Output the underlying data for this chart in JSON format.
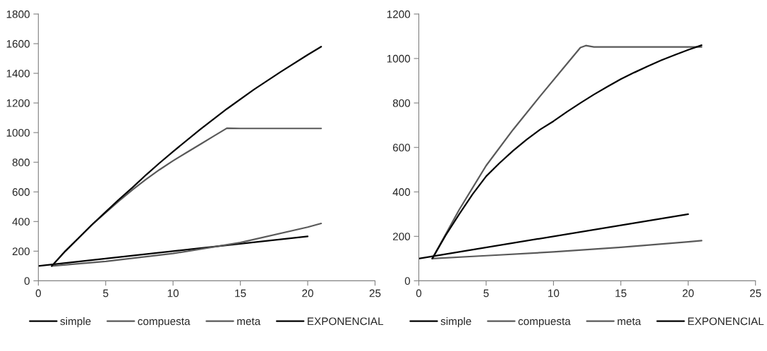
{
  "chart_data": [
    {
      "type": "line",
      "xlim": [
        0,
        25
      ],
      "xticks": [
        0,
        5,
        10,
        15,
        20,
        25
      ],
      "ylim": [
        0,
        1800
      ],
      "yticks": [
        0,
        200,
        400,
        600,
        800,
        1000,
        1200,
        1400,
        1600,
        1800
      ],
      "grid": false,
      "legend": "bottom",
      "marker": "none",
      "line_style": "solid",
      "series": [
        {
          "name": "simple",
          "color": "#000000",
          "x": [
            0,
            20
          ],
          "values": [
            100,
            300
          ]
        },
        {
          "name": "compuesta",
          "color": "#595959",
          "x": [
            1,
            5,
            10,
            15,
            20,
            21
          ],
          "values": [
            100,
            131,
            184,
            258,
            362,
            387
          ]
        },
        {
          "name": "meta",
          "color": "#595959",
          "x": [
            1,
            2,
            3,
            4,
            5,
            6,
            7,
            8,
            9,
            10,
            11,
            12,
            13,
            14,
            15,
            21
          ],
          "values": [
            100,
            200,
            290,
            380,
            460,
            540,
            615,
            685,
            750,
            810,
            865,
            920,
            975,
            1030,
            1028,
            1028
          ]
        },
        {
          "name": "EXPONENCIAL",
          "color": "#000000",
          "x": [
            1,
            2,
            3,
            4,
            5,
            6,
            7,
            8,
            9,
            10,
            12,
            14,
            16,
            18,
            20,
            21
          ],
          "values": [
            100,
            200,
            290,
            380,
            465,
            550,
            630,
            715,
            795,
            872,
            1020,
            1160,
            1290,
            1410,
            1525,
            1580
          ]
        }
      ]
    },
    {
      "type": "line",
      "xlim": [
        0,
        25
      ],
      "xticks": [
        0,
        5,
        10,
        15,
        20,
        25
      ],
      "ylim": [
        0,
        1200
      ],
      "yticks": [
        0,
        200,
        400,
        600,
        800,
        1000,
        1200
      ],
      "grid": false,
      "legend": "bottom",
      "marker": "none",
      "line_style": "solid",
      "series": [
        {
          "name": "simple",
          "color": "#000000",
          "x": [
            0,
            20
          ],
          "values": [
            100,
            300
          ]
        },
        {
          "name": "compuesta",
          "color": "#595959",
          "x": [
            1,
            5,
            10,
            15,
            20,
            21
          ],
          "values": [
            100,
            113,
            130,
            151,
            175,
            181
          ]
        },
        {
          "name": "meta",
          "color": "#595959",
          "x": [
            1,
            3,
            5,
            7,
            9,
            11,
            12,
            12.4,
            13,
            21
          ],
          "values": [
            100,
            320,
            518,
            680,
            830,
            976,
            1049,
            1058,
            1052,
            1052
          ]
        },
        {
          "name": "EXPONENCIAL",
          "color": "#000000",
          "x": [
            1,
            2,
            3,
            4,
            5,
            6,
            7,
            8,
            9,
            10,
            11,
            12,
            13,
            14,
            15,
            16,
            17,
            18,
            19,
            20,
            21
          ],
          "values": [
            100,
            205,
            300,
            390,
            470,
            530,
            585,
            635,
            680,
            718,
            760,
            800,
            838,
            873,
            907,
            937,
            965,
            992,
            1016,
            1039,
            1060
          ]
        }
      ]
    }
  ]
}
